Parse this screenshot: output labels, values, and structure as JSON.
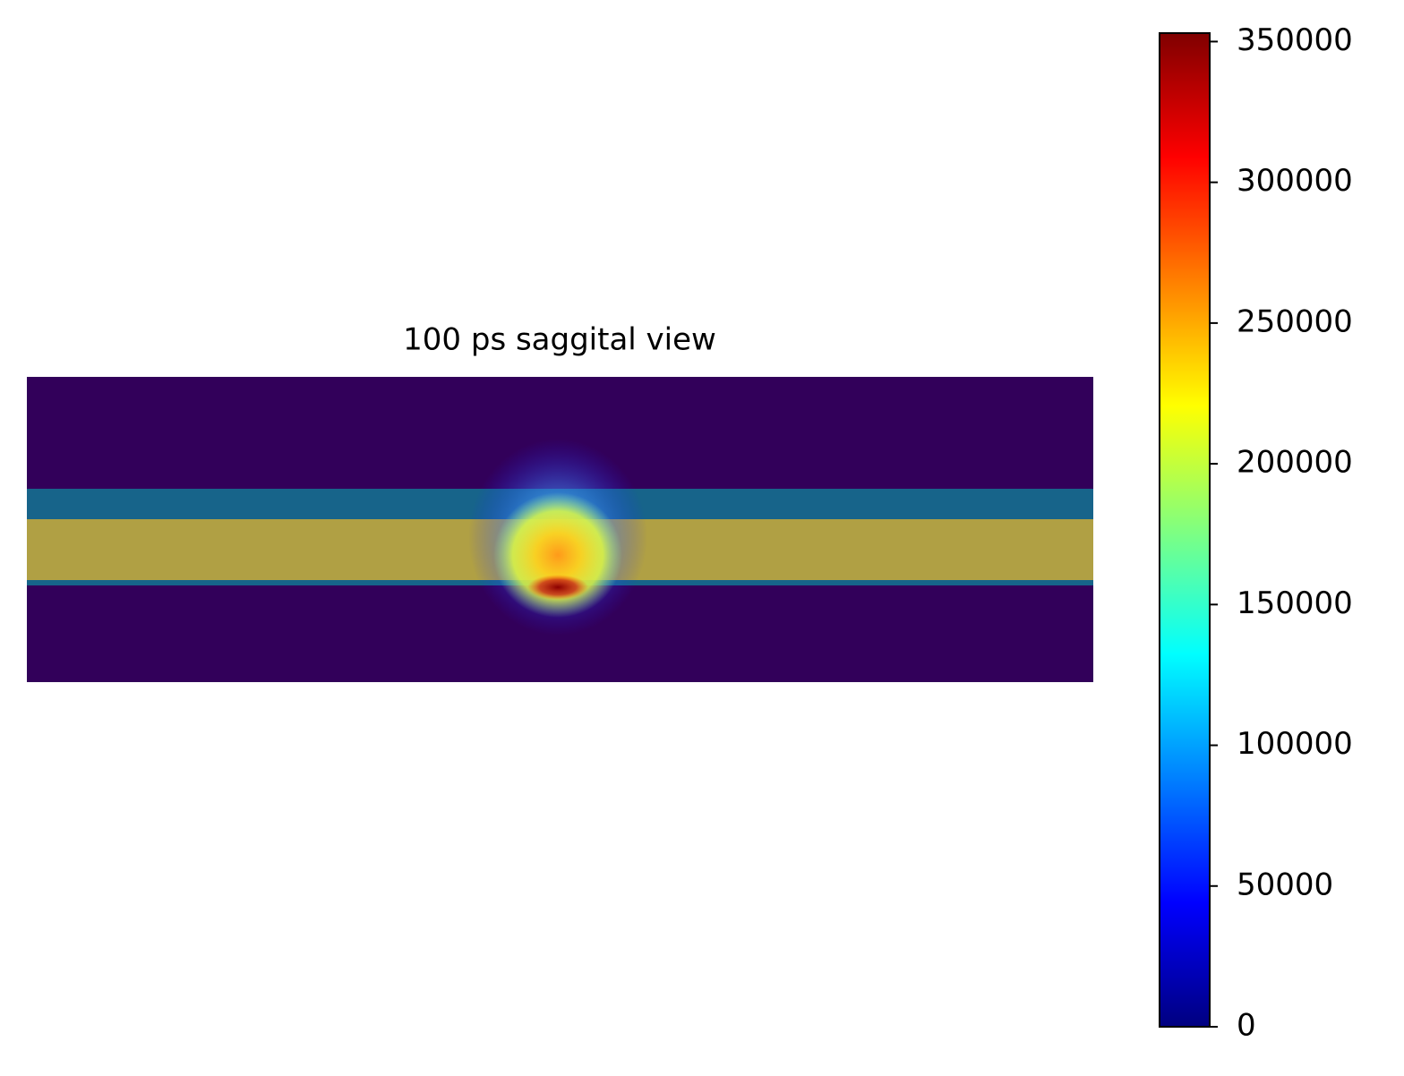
{
  "chart_data": {
    "type": "heatmap",
    "title": "100 ps saggital view",
    "colormap": "jet",
    "clim": [
      0,
      353000
    ],
    "cticks": [
      0,
      50000,
      100000,
      150000,
      200000,
      250000,
      300000,
      350000
    ]
  }
}
